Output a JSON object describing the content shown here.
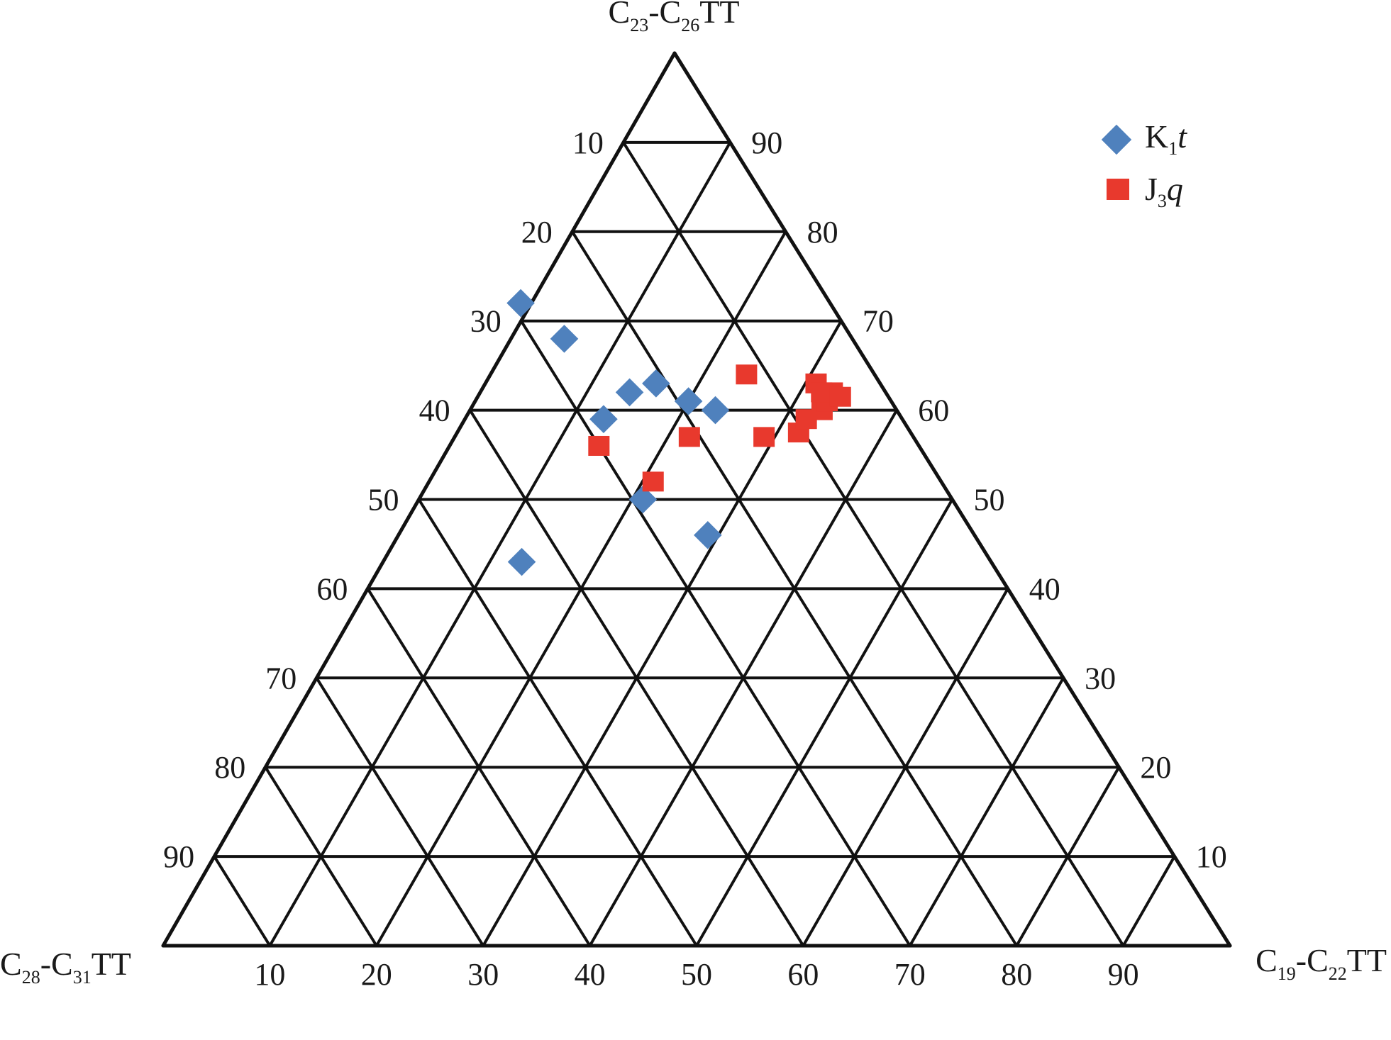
{
  "chart_data": {
    "type": "ternary-scatter",
    "title": "",
    "axes": {
      "top": {
        "base": "C",
        "sub1": "23",
        "mid": "-C",
        "sub2": "26",
        "suffix": "TT"
      },
      "right": {
        "base": "C",
        "sub1": "19",
        "mid": "-C",
        "sub2": "22",
        "suffix": "TT"
      },
      "left": {
        "base": "C",
        "sub1": "28",
        "mid": "-C",
        "sub2": "31",
        "suffix": "TT"
      }
    },
    "left_edge_ticks": [
      "10",
      "20",
      "30",
      "40",
      "50",
      "60",
      "70",
      "80",
      "90"
    ],
    "right_edge_ticks": [
      "90",
      "80",
      "70",
      "60",
      "50",
      "40",
      "30",
      "20",
      "10"
    ],
    "bottom_edge_ticks": [
      "10",
      "20",
      "30",
      "40",
      "50",
      "60",
      "70",
      "80",
      "90"
    ],
    "grid": true,
    "legend_position": "top-right",
    "series": [
      {
        "name_base": "K",
        "name_sub": "1",
        "name_italic": "t",
        "marker": "diamond",
        "color": "#4f81bd",
        "points": [
          {
            "top": 50,
            "right": 21,
            "left": 29
          },
          {
            "top": 46,
            "right": 29,
            "left": 25
          },
          {
            "top": 43,
            "right": 13,
            "left": 44
          },
          {
            "top": 59,
            "right": 13,
            "left": 28
          },
          {
            "top": 61,
            "right": 20,
            "left": 19
          },
          {
            "top": 60,
            "right": 23,
            "left": 17
          },
          {
            "top": 62,
            "right": 14,
            "left": 24
          },
          {
            "top": 63,
            "right": 16,
            "left": 21
          },
          {
            "top": 68,
            "right": 5,
            "left": 27
          },
          {
            "top": 72,
            "right": -1,
            "left": 29
          }
        ]
      },
      {
        "name_base": "J",
        "name_sub": "3",
        "name_italic": "q",
        "marker": "square",
        "color": "#e8392d",
        "points": [
          {
            "top": 52,
            "right": 21,
            "left": 27
          },
          {
            "top": 57,
            "right": 22,
            "left": 21
          },
          {
            "top": 56,
            "right": 14,
            "left": 30
          },
          {
            "top": 57,
            "right": 29,
            "left": 14
          },
          {
            "top": 57.5,
            "right": 32,
            "left": 10.5
          },
          {
            "top": 59,
            "right": 32,
            "left": 9
          },
          {
            "top": 60,
            "right": 33,
            "left": 7
          },
          {
            "top": 62,
            "right": 33,
            "left": 5
          },
          {
            "top": 63,
            "right": 31,
            "left": 6
          },
          {
            "top": 61,
            "right": 33,
            "left": 6
          },
          {
            "top": 64,
            "right": 24,
            "left": 12
          },
          {
            "top": 62,
            "right": 32,
            "left": 6
          },
          {
            "top": 61.5,
            "right": 34,
            "left": 4.5
          }
        ]
      }
    ]
  }
}
